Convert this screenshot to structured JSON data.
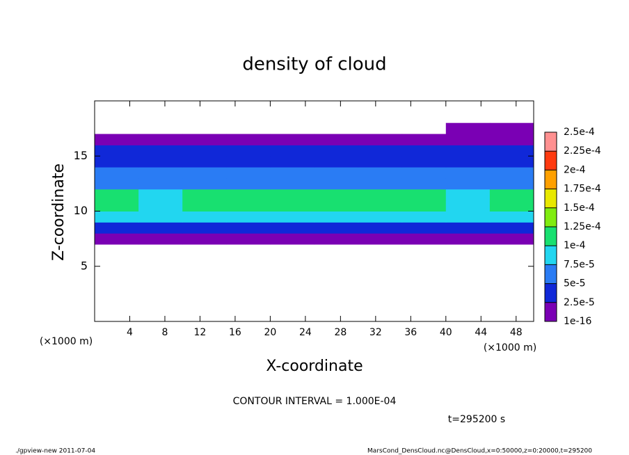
{
  "chart_data": {
    "type": "contour",
    "title": "density of cloud",
    "xlabel": "X-coordinate",
    "ylabel": "Z-coordinate",
    "x_unit": "(×1000 m)",
    "xlim": [
      0,
      50
    ],
    "ylim": [
      0,
      20
    ],
    "xticks": [
      4,
      8,
      12,
      16,
      20,
      24,
      28,
      32,
      36,
      40,
      44,
      48
    ],
    "yticks": [
      5,
      10,
      15
    ],
    "contour_interval_text": "CONTOUR INTERVAL = 1.000E-04",
    "time_text": "t=295200 s",
    "footer_left": "./gpview-new  2011-07-04",
    "footer_right": "MarsCond_DensCloud.nc@DensCloud,x=0:50000,z=0:20000,t=295200",
    "colorbar": {
      "levels": [
        {
          "value": 1e-16,
          "label": "1e-16"
        },
        {
          "value": 2.5e-05,
          "label": "2.5e-5"
        },
        {
          "value": 5e-05,
          "label": "5e-5"
        },
        {
          "value": 7.5e-05,
          "label": "7.5e-5"
        },
        {
          "value": 0.0001,
          "label": "1e-4"
        },
        {
          "value": 0.000125,
          "label": "1.25e-4"
        },
        {
          "value": 0.00015,
          "label": "1.5e-4"
        },
        {
          "value": 0.000175,
          "label": "1.75e-4"
        },
        {
          "value": 0.0002,
          "label": "2e-4"
        },
        {
          "value": 0.000225,
          "label": "2.25e-4"
        },
        {
          "value": 0.00025,
          "label": "2.5e-4"
        }
      ],
      "colors": [
        "#7a00b4",
        "#1028d8",
        "#2a7cf4",
        "#22d6f0",
        "#18e070",
        "#80ec10",
        "#e8e800",
        "#ffa000",
        "#ff3a10",
        "#ff9090"
      ]
    },
    "field": {
      "x_bins": [
        0,
        5,
        10,
        15,
        20,
        25,
        30,
        35,
        40,
        45,
        50
      ],
      "z_bins": [
        0,
        1,
        2,
        3,
        4,
        5,
        6,
        7,
        8,
        9,
        10,
        11,
        12,
        13,
        14,
        15,
        16,
        17,
        18,
        19,
        20
      ],
      "values": [
        [
          0,
          0,
          0,
          0,
          0,
          0,
          0,
          0,
          0,
          0
        ],
        [
          0,
          0,
          0,
          0,
          0,
          0,
          0,
          0,
          0,
          0
        ],
        [
          0,
          0,
          0,
          0,
          0,
          0,
          0,
          0,
          0,
          0
        ],
        [
          0,
          0,
          0,
          0,
          0,
          0,
          0,
          0,
          0,
          0
        ],
        [
          0,
          0,
          0,
          0,
          0,
          0,
          0,
          0,
          0,
          0
        ],
        [
          0,
          0,
          0,
          0,
          0,
          0,
          0,
          0,
          0,
          0
        ],
        [
          0,
          0,
          0,
          0,
          0,
          0,
          0,
          0,
          0,
          0
        ],
        [
          1e-05,
          1e-05,
          1e-05,
          1e-05,
          1e-05,
          1e-05,
          1e-05,
          1e-05,
          1e-05,
          1e-05
        ],
        [
          4e-05,
          4e-05,
          4e-05,
          4e-05,
          4e-05,
          4e-05,
          4e-05,
          4e-05,
          4e-05,
          4e-05
        ],
        [
          8e-05,
          8e-05,
          8e-05,
          8e-05,
          8e-05,
          8e-05,
          8e-05,
          8e-05,
          8e-05,
          8e-05
        ],
        [
          0.0001,
          9.5e-05,
          0.0001,
          0.00011,
          0.00011,
          0.000105,
          0.00011,
          0.000105,
          8.5e-05,
          0.0001
        ],
        [
          0.0001,
          9.5e-05,
          0.0001,
          0.00011,
          0.00011,
          0.000105,
          0.00011,
          0.000105,
          8.5e-05,
          0.0001
        ],
        [
          7e-05,
          7e-05,
          7e-05,
          7e-05,
          7e-05,
          7e-05,
          7e-05,
          7e-05,
          7e-05,
          7e-05
        ],
        [
          5e-05,
          5e-05,
          5e-05,
          5e-05,
          5e-05,
          5e-05,
          5e-05,
          5e-05,
          5e-05,
          5e-05
        ],
        [
          4e-05,
          4e-05,
          4e-05,
          4e-05,
          4e-05,
          4e-05,
          4e-05,
          4e-05,
          4e-05,
          4e-05
        ],
        [
          3e-05,
          3e-05,
          3e-05,
          3e-05,
          3e-05,
          3e-05,
          3e-05,
          3e-05,
          3e-05,
          3e-05
        ],
        [
          1e-05,
          1e-05,
          1e-05,
          1e-05,
          1e-05,
          1e-05,
          1e-05,
          1e-05,
          1e-05,
          1e-05
        ],
        [
          0,
          0,
          0,
          0,
          0,
          0,
          0,
          0,
          1e-05,
          1e-05
        ],
        [
          0,
          0,
          0,
          0,
          0,
          0,
          0,
          0,
          0,
          0
        ],
        [
          0,
          0,
          0,
          0,
          0,
          0,
          0,
          0,
          0,
          0
        ]
      ]
    }
  }
}
